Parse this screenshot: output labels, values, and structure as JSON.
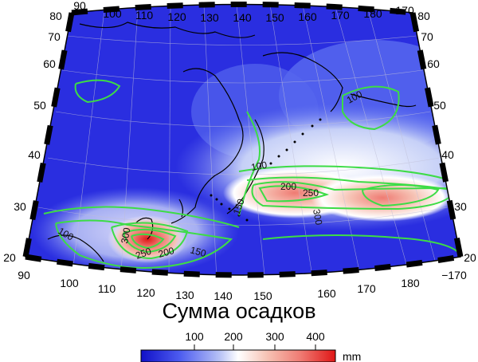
{
  "title": "Сумма осадков",
  "units": "mm",
  "colorbar": {
    "ticks": [
      "100",
      "200",
      "300",
      "400"
    ],
    "colors": [
      "#1010c8",
      "#4d5cf0",
      "#b4bff5",
      "#ffffff",
      "#f6c2b4",
      "#ef7b73",
      "#e01616"
    ]
  },
  "lon_labels": [
    "90",
    "100",
    "110",
    "120",
    "130",
    "140",
    "150",
    "160",
    "170",
    "180",
    "−170"
  ],
  "lat_labels": [
    "20",
    "30",
    "40",
    "50",
    "60",
    "70",
    "80"
  ],
  "contour_labels": [
    "100",
    "100",
    "150",
    "100",
    "200",
    "250",
    "300",
    "300",
    "250",
    "200",
    "150"
  ],
  "colors": {
    "contour": "#3ddc46",
    "coast": "#000000",
    "grid": "#c0c0d8"
  }
}
